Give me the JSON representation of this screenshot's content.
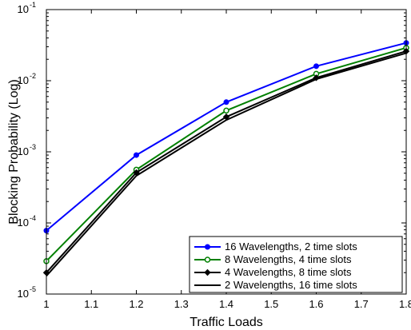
{
  "chart_data": {
    "type": "line",
    "title": "",
    "xlabel": "Traffic Loads",
    "ylabel": "Blocking Probability (Log)",
    "x": [
      1,
      1.2,
      1.4,
      1.6,
      1.8
    ],
    "xlim": [
      1,
      1.8
    ],
    "xticks": [
      "1",
      "1.1",
      "1.2",
      "1.3",
      "1.4",
      "1.5",
      "1.6",
      "1.7",
      "1.8"
    ],
    "ylim": [
      1e-05,
      0.1
    ],
    "yscale": "log",
    "yticks": [
      {
        "base": "10",
        "exp": "-5"
      },
      {
        "base": "10",
        "exp": "-4"
      },
      {
        "base": "10",
        "exp": "-3"
      },
      {
        "base": "10",
        "exp": "-2"
      },
      {
        "base": "10",
        "exp": "-1"
      }
    ],
    "grid": false,
    "legend_position": "bottom-right",
    "series": [
      {
        "name": "16 Wavelengths, 2 time slots",
        "color": "#0000ff",
        "marker": "filled-circle",
        "values": [
          7.8e-05,
          0.0009,
          0.005,
          0.016,
          0.034
        ]
      },
      {
        "name": "8 Wavelengths, 4 time slots",
        "color": "#008000",
        "marker": "open-circle",
        "values": [
          2.9e-05,
          0.00056,
          0.0038,
          0.0125,
          0.029
        ]
      },
      {
        "name": "4 Wavelengths, 8 time slots",
        "color": "#000000",
        "marker": "diamond",
        "values": [
          2e-05,
          0.00051,
          0.0031,
          0.011,
          0.026
        ]
      },
      {
        "name": "2 Wavelengths, 16 time slots",
        "color": "#000000",
        "marker": "none",
        "values": [
          1.8e-05,
          0.00046,
          0.0028,
          0.0105,
          0.0245
        ]
      }
    ]
  }
}
